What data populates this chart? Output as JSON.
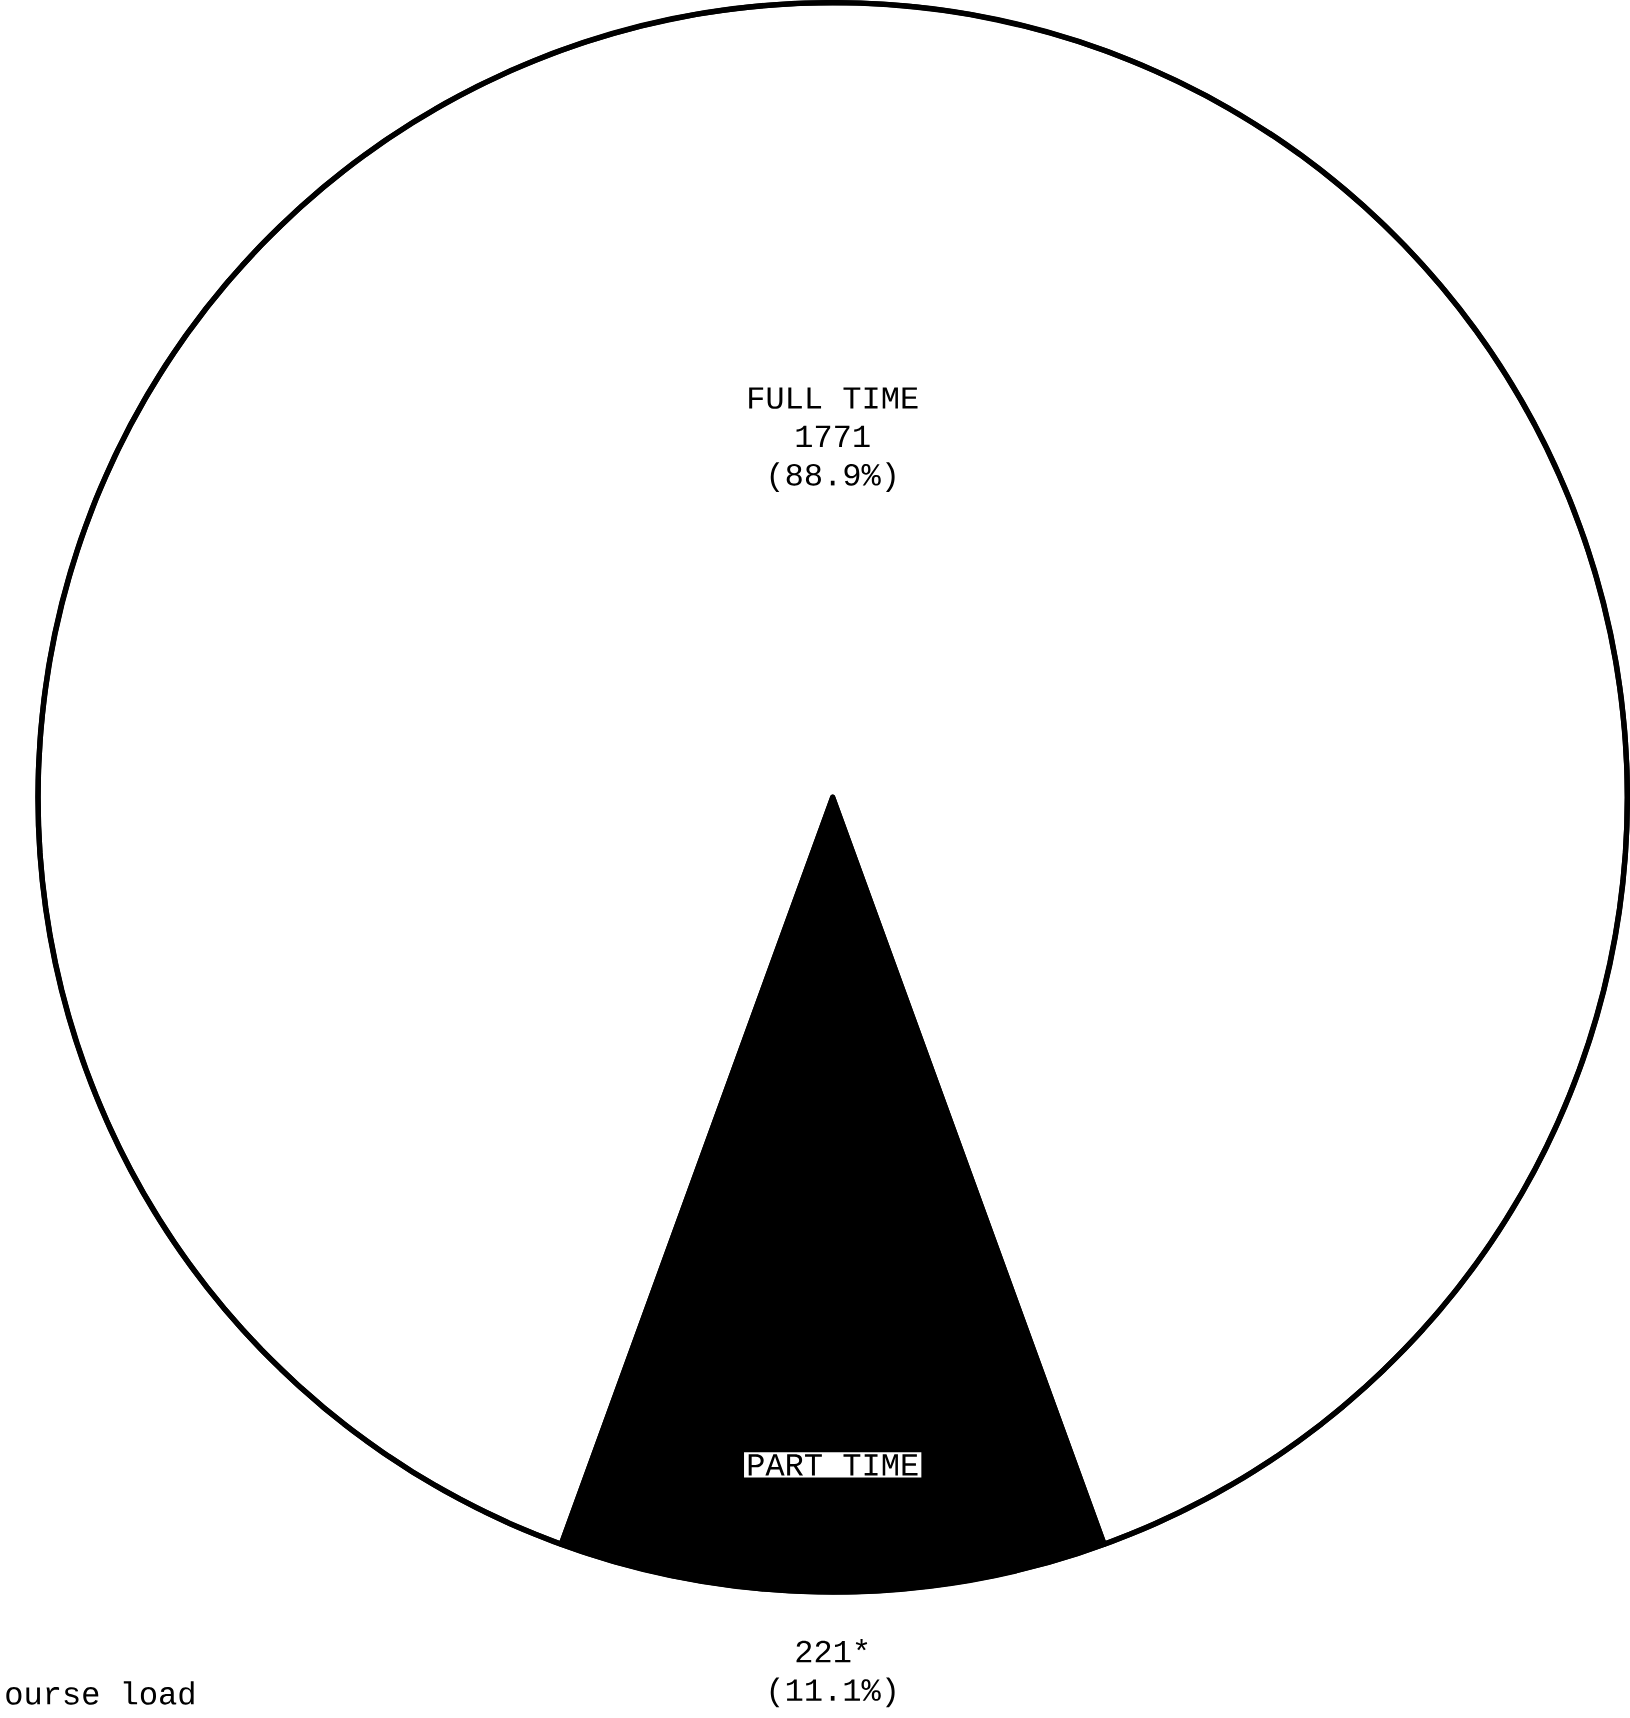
{
  "chart_data": {
    "type": "pie",
    "categories": [
      "FULL TIME",
      "PART TIME"
    ],
    "values": [
      1771,
      221
    ],
    "value_labels": [
      "1771",
      "221*"
    ],
    "colors": [
      "#ffffff",
      "#000000"
    ],
    "annotations": [
      "(88.9%)",
      "(11.1%)",
      "ourse load"
    ]
  }
}
